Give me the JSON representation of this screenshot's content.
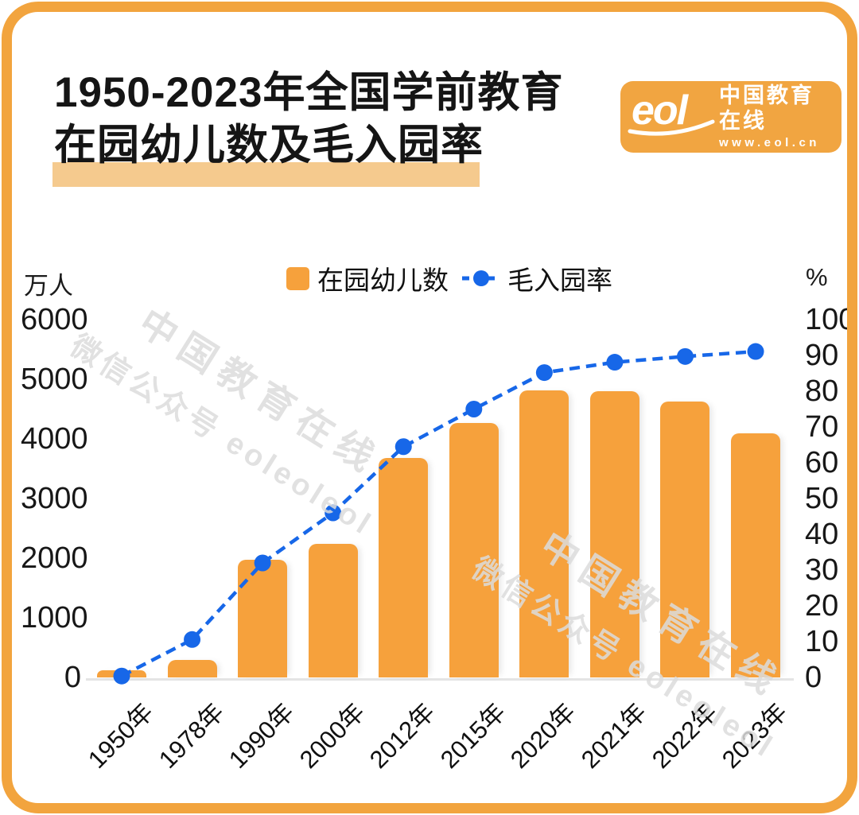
{
  "title": {
    "line1": "1950-2023年全国学前教育",
    "line2": "在园幼儿数及毛入园率"
  },
  "logo": {
    "wordmark": "eol",
    "name": "中国教育在线",
    "url": "www.eol.cn"
  },
  "watermark": {
    "line1": "中国教育在线",
    "line2": "微信公众号 eoleoleol"
  },
  "colors": {
    "accent_orange": "#F6A13C",
    "frame_orange": "#F2A43E",
    "logo_orange": "#F1A541",
    "line_blue": "#1767E8",
    "title_highlight": "#F5CA8E",
    "watermark_gray": "#DCDCDC",
    "axis_line_gray": "#E4E4E4"
  },
  "chart_data": {
    "type": "bar",
    "subtype": "bar+line dual axis",
    "categories": [
      "1950年",
      "1978年",
      "1990年",
      "2000年",
      "2012年",
      "2015年",
      "2020年",
      "2021年",
      "2022年",
      "2023年"
    ],
    "series": [
      {
        "name": "在园幼儿数",
        "type": "bar",
        "axis": "left",
        "unit": "万人",
        "color": "#F6A13C",
        "values": [
          14,
          287.7,
          1972.2,
          2244.2,
          3685.8,
          4264.8,
          4818.3,
          4805.2,
          4627.6,
          4093
        ]
      },
      {
        "name": "毛入园率",
        "type": "line",
        "style": "dashed",
        "axis": "right",
        "unit": "%",
        "color": "#1767E8",
        "values": [
          0.4,
          10.6,
          32,
          46,
          64.5,
          75,
          85.2,
          88.1,
          89.7,
          91.1
        ]
      }
    ],
    "left_axis": {
      "unit": "万人",
      "min": 0,
      "max": 6000,
      "ticks": [
        6000,
        5000,
        4000,
        3000,
        2000,
        1000,
        0
      ]
    },
    "right_axis": {
      "unit": "%",
      "min": 0,
      "max": 100,
      "ticks": [
        100,
        90,
        80,
        70,
        60,
        50,
        40,
        30,
        20,
        10,
        0
      ]
    },
    "grid": false,
    "legend_position": "top-center"
  }
}
